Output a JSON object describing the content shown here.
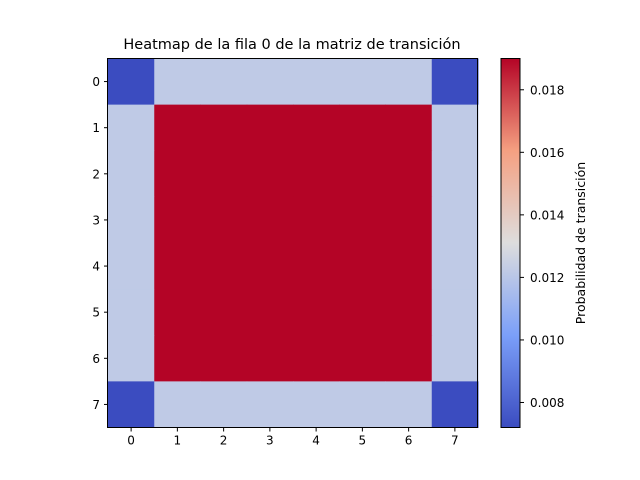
{
  "chart_data": {
    "type": "heatmap",
    "title": "Heatmap de la fila 0 de la matriz de transición",
    "xlabel": "",
    "ylabel": "",
    "x_ticks": [
      "0",
      "1",
      "2",
      "3",
      "4",
      "5",
      "6",
      "7"
    ],
    "y_ticks": [
      "0",
      "1",
      "2",
      "3",
      "4",
      "5",
      "6",
      "7"
    ],
    "values": [
      [
        0.0072,
        0.0122,
        0.0122,
        0.0122,
        0.0122,
        0.0122,
        0.0122,
        0.0072
      ],
      [
        0.0122,
        0.019,
        0.019,
        0.019,
        0.019,
        0.019,
        0.019,
        0.0122
      ],
      [
        0.0122,
        0.019,
        0.019,
        0.019,
        0.019,
        0.019,
        0.019,
        0.0122
      ],
      [
        0.0122,
        0.019,
        0.019,
        0.019,
        0.019,
        0.019,
        0.019,
        0.0122
      ],
      [
        0.0122,
        0.019,
        0.019,
        0.019,
        0.019,
        0.019,
        0.019,
        0.0122
      ],
      [
        0.0122,
        0.019,
        0.019,
        0.019,
        0.019,
        0.019,
        0.019,
        0.0122
      ],
      [
        0.0122,
        0.019,
        0.019,
        0.019,
        0.019,
        0.019,
        0.019,
        0.0122
      ],
      [
        0.0072,
        0.0122,
        0.0122,
        0.0122,
        0.0122,
        0.0122,
        0.0122,
        0.0072
      ]
    ],
    "colormap": "coolwarm",
    "colorbar": {
      "label": "Probabilidad de transición",
      "range": [
        0.0072,
        0.019
      ],
      "ticks": [
        0.008,
        0.01,
        0.012,
        0.014,
        0.016,
        0.018
      ],
      "tick_labels": [
        "0.008",
        "0.010",
        "0.012",
        "0.014",
        "0.016",
        "0.018"
      ]
    }
  }
}
